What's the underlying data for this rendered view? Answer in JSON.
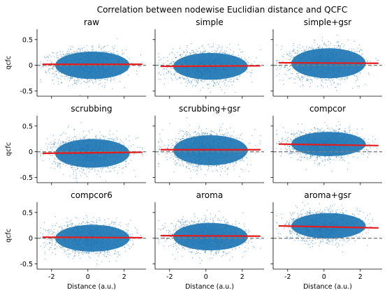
{
  "figure": {
    "suptitle": "Correlation between nodewise Euclidian distance and QCFC"
  },
  "chart_data": [
    {
      "type": "scatter",
      "title": "raw",
      "xlabel": "",
      "ylabel": "qcfc",
      "xlim": [
        -2.8,
        3.2
      ],
      "ylim": [
        -0.6,
        0.7
      ],
      "xticks": [
        -2,
        0,
        2
      ],
      "yticks": [
        -0.5,
        0.0,
        0.5
      ],
      "scatter_center": 0.0,
      "scatter_spread": 0.43,
      "fit_line": {
        "x": [
          -2.5,
          3.0
        ],
        "y": [
          0.02,
          0.02
        ]
      },
      "reference_line_y": 0,
      "point_color": "#1f77b4",
      "fit_color": "#e41a1c",
      "ref_color": "#808080"
    },
    {
      "type": "scatter",
      "title": "simple",
      "xlabel": "",
      "ylabel": "",
      "xlim": [
        -2.8,
        3.2
      ],
      "ylim": [
        -0.6,
        0.7
      ],
      "xticks": [
        -2,
        0,
        2
      ],
      "yticks": [
        -0.5,
        0.0,
        0.5
      ],
      "scatter_center": -0.02,
      "scatter_spread": 0.42,
      "fit_line": {
        "x": [
          -2.5,
          3.0
        ],
        "y": [
          -0.02,
          -0.01
        ]
      },
      "reference_line_y": 0,
      "point_color": "#1f77b4",
      "fit_color": "#e41a1c",
      "ref_color": "#808080"
    },
    {
      "type": "scatter",
      "title": "simple+gsr",
      "xlabel": "",
      "ylabel": "",
      "xlim": [
        -2.8,
        3.2
      ],
      "ylim": [
        -0.6,
        0.7
      ],
      "xticks": [
        -2,
        0,
        2
      ],
      "yticks": [
        -0.5,
        0.0,
        0.5
      ],
      "scatter_center": 0.04,
      "scatter_spread": 0.47,
      "fit_line": {
        "x": [
          -2.5,
          3.0
        ],
        "y": [
          0.05,
          0.04
        ]
      },
      "reference_line_y": 0,
      "point_color": "#1f77b4",
      "fit_color": "#e41a1c",
      "ref_color": "#808080"
    },
    {
      "type": "scatter",
      "title": "scrubbing",
      "xlabel": "",
      "ylabel": "qcfc",
      "xlim": [
        -2.8,
        3.2
      ],
      "ylim": [
        -0.6,
        0.7
      ],
      "xticks": [
        -2,
        0,
        2
      ],
      "yticks": [
        -0.5,
        0.0,
        0.5
      ],
      "scatter_center": -0.03,
      "scatter_spread": 0.45,
      "fit_line": {
        "x": [
          -2.5,
          3.0
        ],
        "y": [
          -0.03,
          -0.01
        ]
      },
      "reference_line_y": 0,
      "point_color": "#1f77b4",
      "fit_color": "#e41a1c",
      "ref_color": "#808080"
    },
    {
      "type": "scatter",
      "title": "scrubbing+gsr",
      "xlabel": "",
      "ylabel": "",
      "xlim": [
        -2.8,
        3.2
      ],
      "ylim": [
        -0.6,
        0.7
      ],
      "xticks": [
        -2,
        0,
        2
      ],
      "yticks": [
        -0.5,
        0.0,
        0.5
      ],
      "scatter_center": 0.03,
      "scatter_spread": 0.47,
      "fit_line": {
        "x": [
          -2.5,
          3.0
        ],
        "y": [
          0.04,
          0.04
        ]
      },
      "reference_line_y": 0,
      "point_color": "#1f77b4",
      "fit_color": "#e41a1c",
      "ref_color": "#808080"
    },
    {
      "type": "scatter",
      "title": "compcor",
      "xlabel": "",
      "ylabel": "",
      "xlim": [
        -2.8,
        3.2
      ],
      "ylim": [
        -0.6,
        0.7
      ],
      "xticks": [
        -2,
        0,
        2
      ],
      "yticks": [
        -0.5,
        0.0,
        0.5
      ],
      "scatter_center": 0.15,
      "scatter_spread": 0.38,
      "fit_line": {
        "x": [
          -2.5,
          3.0
        ],
        "y": [
          0.15,
          0.12
        ]
      },
      "reference_line_y": 0,
      "point_color": "#1f77b4",
      "fit_color": "#e41a1c",
      "ref_color": "#808080"
    },
    {
      "type": "scatter",
      "title": "compcor6",
      "xlabel": "Distance (a.u.)",
      "ylabel": "qcfc",
      "xlim": [
        -2.8,
        3.2
      ],
      "ylim": [
        -0.6,
        0.7
      ],
      "xticks": [
        -2,
        0,
        2
      ],
      "yticks": [
        -0.5,
        0.0,
        0.5
      ],
      "scatter_center": 0.0,
      "scatter_spread": 0.42,
      "fit_line": {
        "x": [
          -2.5,
          3.0
        ],
        "y": [
          0.02,
          0.01
        ]
      },
      "reference_line_y": 0,
      "point_color": "#1f77b4",
      "fit_color": "#e41a1c",
      "ref_color": "#808080"
    },
    {
      "type": "scatter",
      "title": "aroma",
      "xlabel": "Distance (a.u.)",
      "ylabel": "",
      "xlim": [
        -2.8,
        3.2
      ],
      "ylim": [
        -0.6,
        0.7
      ],
      "xticks": [
        -2,
        0,
        2
      ],
      "yticks": [
        -0.5,
        0.0,
        0.5
      ],
      "scatter_center": 0.03,
      "scatter_spread": 0.43,
      "fit_line": {
        "x": [
          -2.5,
          3.0
        ],
        "y": [
          0.05,
          0.04
        ]
      },
      "reference_line_y": 0,
      "point_color": "#1f77b4",
      "fit_color": "#e41a1c",
      "ref_color": "#808080"
    },
    {
      "type": "scatter",
      "title": "aroma+gsr",
      "xlabel": "Distance (a.u.)",
      "ylabel": "",
      "xlim": [
        -2.8,
        3.2
      ],
      "ylim": [
        -0.6,
        0.7
      ],
      "xticks": [
        -2,
        0,
        2
      ],
      "yticks": [
        -0.5,
        0.0,
        0.5
      ],
      "scatter_center": 0.24,
      "scatter_spread": 0.4,
      "fit_line": {
        "x": [
          -2.5,
          3.0
        ],
        "y": [
          0.24,
          0.2
        ]
      },
      "reference_line_y": 0,
      "point_color": "#1f77b4",
      "fit_color": "#e41a1c",
      "ref_color": "#808080"
    }
  ]
}
